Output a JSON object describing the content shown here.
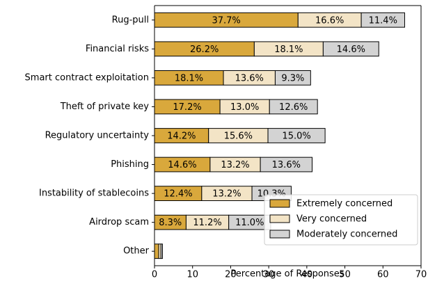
{
  "chart_data": {
    "type": "barh_stacked",
    "xlabel": "Percentage of Responses",
    "categories": [
      "Rug-pull",
      "Financial risks",
      "Smart contract exploitation",
      "Theft of private key",
      "Regulatory uncertainty",
      "Phishing",
      "Instability of stablecoins",
      "Airdrop scam",
      "Other"
    ],
    "series": [
      {
        "name": "Extremely concerned",
        "color": "#d9a83c",
        "values": [
          37.7,
          26.2,
          18.1,
          17.2,
          14.2,
          14.6,
          12.4,
          8.3,
          1.1
        ],
        "value_labels": [
          "37.7%",
          "26.2%",
          "18.1%",
          "17.2%",
          "14.2%",
          "14.6%",
          "12.4%",
          "8.3%",
          null
        ]
      },
      {
        "name": "Very concerned",
        "color": "#f3e4c6",
        "values": [
          16.6,
          18.1,
          13.6,
          13.0,
          15.6,
          13.2,
          13.2,
          11.2,
          0.6
        ],
        "value_labels": [
          "16.6%",
          "18.1%",
          "13.6%",
          "13.0%",
          "15.6%",
          "13.2%",
          "13.2%",
          "11.2%",
          null
        ]
      },
      {
        "name": "Moderately concerned",
        "color": "#d3d3d3",
        "values": [
          11.4,
          14.6,
          9.3,
          12.6,
          15.0,
          13.6,
          10.3,
          11.0,
          0.4
        ],
        "value_labels": [
          "11.4%",
          "14.6%",
          "9.3%",
          "12.6%",
          "15.0%",
          "13.6%",
          "10.3%",
          "11.0%",
          null
        ]
      }
    ],
    "xlim": [
      0,
      70
    ],
    "xticks": [
      0,
      10,
      20,
      30,
      40,
      50,
      60,
      70
    ],
    "legend": "lower right"
  }
}
